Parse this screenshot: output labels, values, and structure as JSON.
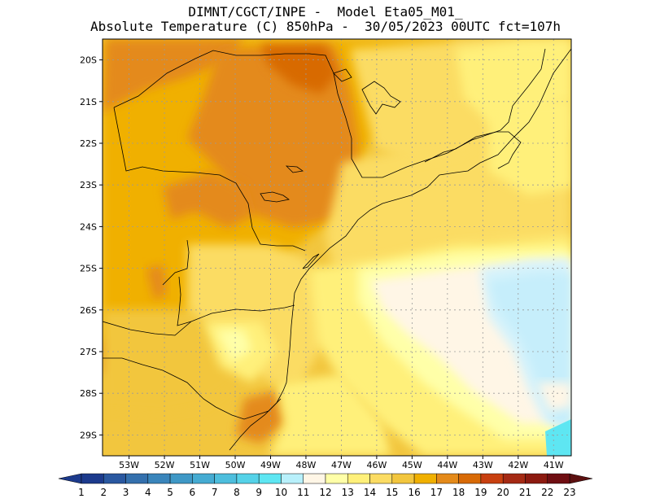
{
  "title": {
    "line1": "DIMNT/CGCT/INPE -  Model Eta05_M01_",
    "line2": "Absolute Temperature (C) 850hPa -  30/05/2023 00UTC fct=107h"
  },
  "map": {
    "lon_range": [
      -53.75,
      -40.5
    ],
    "lat_range": [
      -29.5,
      -19.5
    ],
    "lat_ticks": [
      "20S",
      "21S",
      "22S",
      "23S",
      "24S",
      "25S",
      "26S",
      "27S",
      "28S",
      "29S"
    ],
    "lat_values": [
      -20,
      -21,
      -22,
      -23,
      -24,
      -25,
      -26,
      -27,
      -28,
      -29
    ],
    "lon_ticks": [
      "53W",
      "52W",
      "51W",
      "50W",
      "49W",
      "48W",
      "47W",
      "46W",
      "45W",
      "44W",
      "43W",
      "42W",
      "41W"
    ],
    "lon_values": [
      -53,
      -52,
      -51,
      -50,
      -49,
      -48,
      -47,
      -46,
      -45,
      -44,
      -43,
      -42,
      -41
    ],
    "grid": true
  },
  "colorbar": {
    "labels": [
      "1",
      "2",
      "3",
      "4",
      "5",
      "6",
      "7",
      "8",
      "9",
      "10",
      "11",
      "12",
      "13",
      "14",
      "15",
      "16",
      "17",
      "18",
      "19",
      "20",
      "21",
      "22",
      "23"
    ],
    "colors": [
      "#1c3a8c",
      "#2a58a0",
      "#3470ad",
      "#3a85bb",
      "#3f98c6",
      "#45abd2",
      "#4dbedd",
      "#55d2e8",
      "#5ee6f2",
      "#b8f0fb",
      "#fff6e6",
      "#ffffa8",
      "#fff07a",
      "#fbdc63",
      "#f2c63e",
      "#f0b000",
      "#e48a1a",
      "#d86a06",
      "#c84010",
      "#a52a14",
      "#8c1a10",
      "#6f0e12"
    ],
    "left_color": "#1c3a8c",
    "right_color": "#5c1010"
  },
  "colors": {
    "coast_line": "#000000",
    "grid_line": "#9a9a9a"
  }
}
